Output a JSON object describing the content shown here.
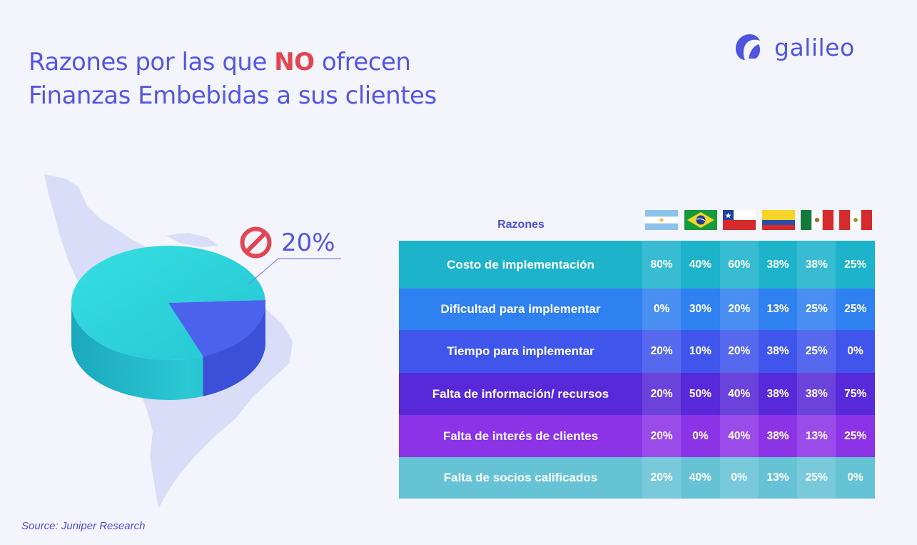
{
  "title": {
    "line1_before": "Razones por las que ",
    "line1_emph": "NO",
    "line1_after": " ofrecen",
    "line2": "Finanzas Embebidas a sus clientes"
  },
  "brand": {
    "name": "galileo",
    "icon": "galileo-logo-icon",
    "color": "#4f55e0"
  },
  "callout": {
    "icon": "prohibited-icon",
    "value": "20%"
  },
  "source": "Source: Juniper Research",
  "colors": {
    "title": "#5457e2",
    "emphasis": "#e24650",
    "pie_main": "#2fd3d8",
    "pie_slice": "#4a62ec",
    "row_colors": [
      "#1cb3cb",
      "#2f80f0",
      "#3f55ec",
      "#5729d8",
      "#8c33e8",
      "#66c3d6"
    ]
  },
  "chart_data": [
    {
      "type": "pie",
      "title": "",
      "slices": [
        {
          "label": "",
          "value": 80
        },
        {
          "label": "",
          "value": 20
        }
      ],
      "annotation": "20%"
    },
    {
      "type": "table",
      "columns_header": "Razones",
      "columns": [
        {
          "country": "Argentina",
          "flag": "argentina-flag-icon"
        },
        {
          "country": "Brasil",
          "flag": "brazil-flag-icon"
        },
        {
          "country": "Chile",
          "flag": "chile-flag-icon"
        },
        {
          "country": "Colombia",
          "flag": "colombia-flag-icon"
        },
        {
          "country": "México",
          "flag": "mexico-flag-icon"
        },
        {
          "country": "Perú",
          "flag": "peru-flag-icon"
        }
      ],
      "rows": [
        {
          "reason": "Costo de implementación",
          "values": [
            "80%",
            "40%",
            "60%",
            "38%",
            "38%",
            "25%"
          ]
        },
        {
          "reason": "Dificultad para implementar",
          "values": [
            "0%",
            "30%",
            "20%",
            "13%",
            "25%",
            "25%"
          ]
        },
        {
          "reason": "Tiempo para implementar",
          "values": [
            "20%",
            "10%",
            "20%",
            "38%",
            "25%",
            "0%"
          ]
        },
        {
          "reason": "Falta de información/ recursos",
          "values": [
            "20%",
            "50%",
            "40%",
            "38%",
            "38%",
            "75%"
          ]
        },
        {
          "reason": "Falta de interés de clientes",
          "values": [
            "20%",
            "0%",
            "40%",
            "38%",
            "13%",
            "25%"
          ]
        },
        {
          "reason": "Falta de socios calificados",
          "values": [
            "20%",
            "40%",
            "0%",
            "13%",
            "25%",
            "0%"
          ]
        }
      ]
    }
  ]
}
